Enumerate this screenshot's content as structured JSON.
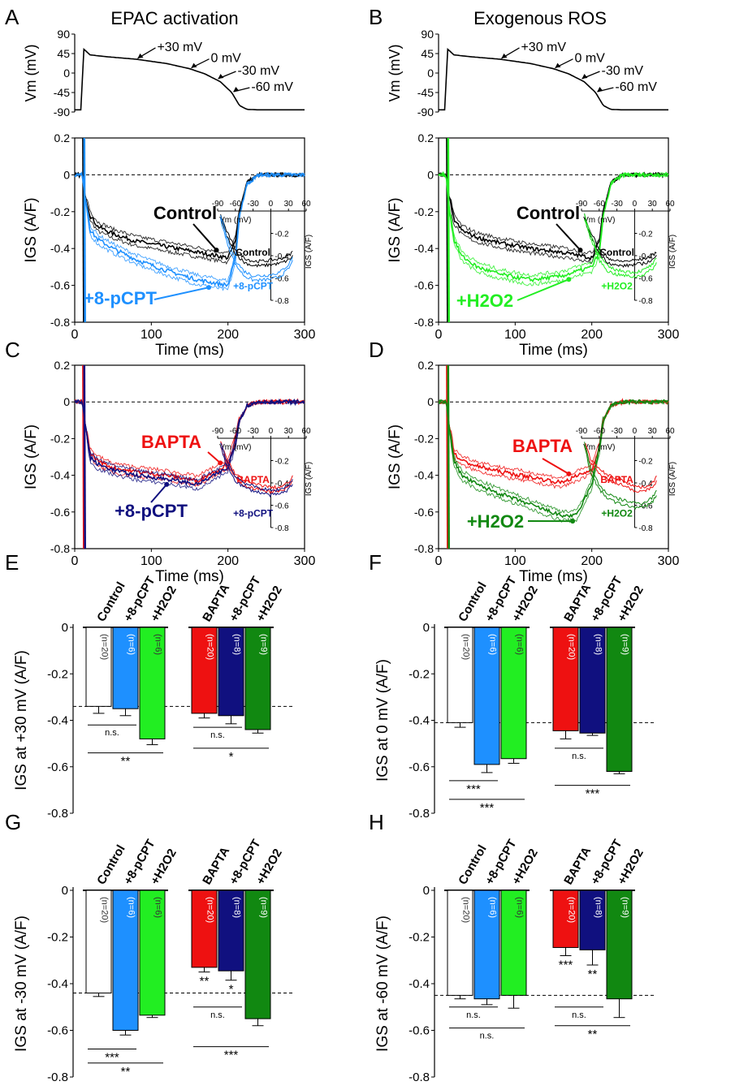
{
  "figure_titles": {
    "left": "EPAC activation",
    "right": "Exogenous ROS"
  },
  "panel_letters": [
    "A",
    "B",
    "C",
    "D",
    "E",
    "F",
    "G",
    "H"
  ],
  "colors": {
    "control": "#000000",
    "pcpt": "#1e90ff",
    "h2o2": "#22ee22",
    "bapta": "#ee1111",
    "bapta_pcpt": "#10107f",
    "bapta_h2o2": "#118811"
  },
  "chart_data": [
    {
      "panel": "A-top",
      "type": "line",
      "ylabel": "Vm (mV)",
      "yticks": [
        90,
        45,
        0,
        -45,
        -90
      ],
      "ylim": [
        -90,
        90
      ],
      "xlim": [
        0,
        300
      ],
      "series": [
        {
          "color": "#000000",
          "x": [
            0,
            8,
            12,
            20,
            40,
            80,
            120,
            150,
            170,
            190,
            205,
            215,
            225,
            240,
            300
          ],
          "y": [
            -85,
            -85,
            55,
            42,
            38,
            32,
            22,
            10,
            -2,
            -20,
            -45,
            -75,
            -84,
            -85,
            -85
          ]
        }
      ],
      "annotations": [
        "+30 mV",
        "0 mV",
        "-30 mV",
        "-60 mV"
      ]
    },
    {
      "panel": "B-top",
      "type": "line",
      "ylabel": "Vm (mV)",
      "yticks": [
        90,
        45,
        0,
        -45,
        -90
      ],
      "ylim": [
        -90,
        90
      ],
      "xlim": [
        0,
        300
      ],
      "series": [
        {
          "color": "#000000",
          "x": [
            0,
            8,
            12,
            20,
            40,
            80,
            120,
            150,
            170,
            190,
            205,
            215,
            225,
            240,
            300
          ],
          "y": [
            -85,
            -85,
            55,
            42,
            38,
            32,
            22,
            10,
            -2,
            -20,
            -45,
            -75,
            -84,
            -85,
            -85
          ]
        }
      ],
      "annotations": [
        "+30 mV",
        "0 mV",
        "-30 mV",
        "-60 mV"
      ]
    },
    {
      "panel": "A",
      "type": "line",
      "xlabel": "Time (ms)",
      "ylabel": "IGS (A/F)",
      "xlim": [
        0,
        300
      ],
      "ylim": [
        -0.8,
        0.2
      ],
      "xticks": [
        0,
        100,
        200,
        300
      ],
      "yticks": [
        0.2,
        0.0,
        -0.2,
        -0.4,
        -0.6,
        -0.8
      ],
      "series": [
        {
          "name": "Control",
          "color": "#000000",
          "x": [
            0,
            10,
            13,
            20,
            30,
            50,
            80,
            120,
            160,
            200,
            210,
            215,
            225,
            240,
            300
          ],
          "y": [
            0,
            0,
            -0.1,
            -0.22,
            -0.28,
            -0.32,
            -0.36,
            -0.39,
            -0.42,
            -0.45,
            -0.36,
            -0.2,
            -0.04,
            0,
            0
          ]
        },
        {
          "name": "+8-pCPT",
          "color": "#1e90ff",
          "x": [
            0,
            10,
            13,
            20,
            30,
            50,
            80,
            120,
            160,
            200,
            210,
            215,
            225,
            240,
            300
          ],
          "y": [
            0,
            0,
            -0.1,
            -0.3,
            -0.35,
            -0.4,
            -0.46,
            -0.52,
            -0.57,
            -0.6,
            -0.45,
            -0.22,
            -0.05,
            0,
            0
          ]
        }
      ],
      "inset": {
        "xlabel": "Vm (mV)",
        "ylabel": "IGS (A/F)",
        "xticks": [
          -90,
          -60,
          -30,
          0,
          30,
          60
        ],
        "yticks": [
          -0.2,
          -0.4,
          -0.6,
          -0.8
        ],
        "series": [
          {
            "name": "Control",
            "x": [
              -85,
              -75,
              -60,
              -45,
              -30,
              -15,
              0,
              15,
              30,
              38
            ],
            "y": [
              -0.05,
              -0.2,
              -0.36,
              -0.44,
              -0.47,
              -0.47,
              -0.46,
              -0.45,
              -0.42,
              -0.38
            ]
          },
          {
            "name": "+8-pCPT",
            "x": [
              -85,
              -75,
              -60,
              -45,
              -30,
              -15,
              0,
              15,
              30,
              38
            ],
            "y": [
              -0.05,
              -0.25,
              -0.46,
              -0.56,
              -0.6,
              -0.6,
              -0.59,
              -0.57,
              -0.5,
              -0.42
            ]
          }
        ]
      }
    },
    {
      "panel": "B",
      "type": "line",
      "xlabel": "Time (ms)",
      "ylabel": "IGS (A/F)",
      "xlim": [
        0,
        300
      ],
      "ylim": [
        -0.8,
        0.2
      ],
      "xticks": [
        0,
        100,
        200,
        300
      ],
      "yticks": [
        0.2,
        0.0,
        -0.2,
        -0.4,
        -0.6,
        -0.8
      ],
      "series": [
        {
          "name": "Control",
          "color": "#000000",
          "x": [
            0,
            10,
            13,
            20,
            30,
            50,
            80,
            120,
            160,
            200,
            210,
            215,
            225,
            240,
            300
          ],
          "y": [
            0,
            0,
            -0.1,
            -0.24,
            -0.3,
            -0.34,
            -0.37,
            -0.4,
            -0.42,
            -0.45,
            -0.36,
            -0.2,
            -0.04,
            0,
            0
          ]
        },
        {
          "name": "+H2O2",
          "color": "#22ee22",
          "x": [
            0,
            10,
            13,
            20,
            30,
            50,
            80,
            120,
            160,
            200,
            210,
            215,
            225,
            240,
            300
          ],
          "y": [
            0,
            0,
            -0.15,
            -0.35,
            -0.44,
            -0.5,
            -0.54,
            -0.57,
            -0.55,
            -0.5,
            -0.42,
            -0.22,
            -0.05,
            0,
            0
          ]
        }
      ],
      "inset": {
        "xlabel": "Vm (mV)",
        "ylabel": "IGS (A/F)",
        "xticks": [
          -90,
          -60,
          -30,
          0,
          30,
          60
        ],
        "yticks": [
          -0.2,
          -0.4,
          -0.6,
          -0.8
        ],
        "series": [
          {
            "name": "Control",
            "x": [
              -85,
              -75,
              -60,
              -45,
              -30,
              -15,
              0,
              15,
              30,
              38
            ],
            "y": [
              -0.05,
              -0.2,
              -0.36,
              -0.44,
              -0.47,
              -0.47,
              -0.46,
              -0.45,
              -0.42,
              -0.38
            ]
          },
          {
            "name": "+H2O2",
            "x": [
              -85,
              -75,
              -60,
              -45,
              -30,
              -15,
              0,
              15,
              30,
              38
            ],
            "y": [
              -0.05,
              -0.22,
              -0.42,
              -0.52,
              -0.55,
              -0.56,
              -0.57,
              -0.55,
              -0.5,
              -0.44
            ]
          }
        ]
      }
    },
    {
      "panel": "C",
      "type": "line",
      "xlabel": "Time (ms)",
      "ylabel": "IGS (A/F)",
      "xlim": [
        0,
        300
      ],
      "ylim": [
        -0.8,
        0.2
      ],
      "xticks": [
        0,
        100,
        200,
        300
      ],
      "yticks": [
        0.2,
        0.0,
        -0.2,
        -0.4,
        -0.6,
        -0.8
      ],
      "series": [
        {
          "name": "BAPTA",
          "color": "#ee1111",
          "x": [
            0,
            10,
            13,
            20,
            30,
            50,
            80,
            120,
            160,
            200,
            210,
            215,
            225,
            240,
            300
          ],
          "y": [
            0,
            0,
            -0.1,
            -0.28,
            -0.32,
            -0.36,
            -0.38,
            -0.4,
            -0.43,
            -0.34,
            -0.2,
            -0.1,
            -0.02,
            0,
            0
          ]
        },
        {
          "name": "+8-pCPT",
          "color": "#10107f",
          "x": [
            0,
            10,
            13,
            20,
            30,
            50,
            80,
            120,
            160,
            200,
            210,
            215,
            225,
            240,
            300
          ],
          "y": [
            0,
            0,
            -0.1,
            -0.3,
            -0.34,
            -0.37,
            -0.4,
            -0.42,
            -0.45,
            -0.36,
            -0.22,
            -0.1,
            -0.02,
            0,
            0
          ]
        }
      ],
      "inset": {
        "xlabel": "Vm (mV)",
        "ylabel": "IGS (A/F)",
        "xticks": [
          -90,
          -60,
          -30,
          0,
          30,
          60
        ],
        "yticks": [
          -0.2,
          -0.4,
          -0.6,
          -0.8
        ],
        "series": [
          {
            "name": "BAPTA",
            "x": [
              -85,
              -75,
              -60,
              -45,
              -30,
              -15,
              0,
              15,
              30,
              38
            ],
            "y": [
              -0.05,
              -0.2,
              -0.34,
              -0.4,
              -0.43,
              -0.44,
              -0.46,
              -0.46,
              -0.42,
              -0.36
            ]
          },
          {
            "name": "+8-pCPT",
            "x": [
              -85,
              -75,
              -60,
              -45,
              -30,
              -15,
              0,
              15,
              30,
              38
            ],
            "y": [
              -0.05,
              -0.22,
              -0.36,
              -0.42,
              -0.45,
              -0.47,
              -0.49,
              -0.48,
              -0.44,
              -0.38
            ]
          }
        ]
      }
    },
    {
      "panel": "D",
      "type": "line",
      "xlabel": "Time (ms)",
      "ylabel": "IGS (A/F)",
      "xlim": [
        0,
        300
      ],
      "ylim": [
        -0.8,
        0.2
      ],
      "xticks": [
        0,
        100,
        200,
        300
      ],
      "yticks": [
        0.2,
        0.0,
        -0.2,
        -0.4,
        -0.6,
        -0.8
      ],
      "series": [
        {
          "name": "BAPTA",
          "color": "#ee1111",
          "x": [
            0,
            10,
            13,
            20,
            30,
            50,
            80,
            120,
            160,
            200,
            210,
            215,
            225,
            240,
            300
          ],
          "y": [
            0,
            0,
            -0.1,
            -0.28,
            -0.32,
            -0.35,
            -0.38,
            -0.41,
            -0.44,
            -0.37,
            -0.24,
            -0.1,
            -0.02,
            0,
            0
          ]
        },
        {
          "name": "+H2O2",
          "color": "#118811",
          "x": [
            0,
            10,
            13,
            20,
            30,
            50,
            80,
            120,
            160,
            180,
            200,
            210,
            215,
            225,
            240,
            300
          ],
          "y": [
            0,
            0,
            -0.1,
            -0.32,
            -0.4,
            -0.45,
            -0.5,
            -0.56,
            -0.62,
            -0.62,
            -0.45,
            -0.25,
            -0.1,
            -0.02,
            0,
            0
          ]
        }
      ],
      "inset": {
        "xlabel": "Vm (mV)",
        "ylabel": "IGS (A/F)",
        "xticks": [
          -90,
          -60,
          -30,
          0,
          30,
          60
        ],
        "yticks": [
          -0.2,
          -0.4,
          -0.6,
          -0.8
        ],
        "series": [
          {
            "name": "BAPTA",
            "x": [
              -85,
              -75,
              -60,
              -45,
              -30,
              -15,
              0,
              15,
              30,
              38
            ],
            "y": [
              -0.05,
              -0.2,
              -0.3,
              -0.35,
              -0.38,
              -0.41,
              -0.45,
              -0.46,
              -0.42,
              -0.36
            ]
          },
          {
            "name": "+H2O2",
            "x": [
              -85,
              -75,
              -60,
              -45,
              -30,
              -15,
              0,
              15,
              30,
              38
            ],
            "y": [
              -0.05,
              -0.28,
              -0.44,
              -0.52,
              -0.56,
              -0.58,
              -0.6,
              -0.6,
              -0.55,
              -0.48
            ]
          }
        ]
      }
    },
    {
      "panel": "E",
      "type": "bar",
      "ylabel": "IGS at +30 mV (A/F)",
      "ylim": [
        -0.8,
        0
      ],
      "yticks": [
        0.0,
        -0.2,
        -0.4,
        -0.6,
        -0.8
      ],
      "reference_line": -0.34,
      "categories": [
        "Control",
        "+8-pCPT",
        "+H2O2",
        "BAPTA",
        "+8-pCPT",
        "+H2O2"
      ],
      "n": [
        "(n=20)",
        "(n=6)",
        "(n=6)",
        "(n=20)",
        "(n=8)",
        "(n=9)"
      ],
      "values": [
        -0.34,
        -0.35,
        -0.48,
        -0.37,
        -0.38,
        -0.44
      ],
      "errors": [
        0.03,
        0.03,
        0.025,
        0.02,
        0.035,
        0.015
      ],
      "significance": [
        {
          "from": 0,
          "to": 1,
          "label": "n.s.",
          "y": -0.42
        },
        {
          "from": 0,
          "to": 2,
          "label": "**",
          "y": -0.54
        },
        {
          "from": 3,
          "to": 4,
          "label": "n.s.",
          "y": -0.43
        },
        {
          "from": 3,
          "to": 5,
          "label": "*",
          "y": -0.52
        }
      ],
      "inline_marks": []
    },
    {
      "panel": "F",
      "type": "bar",
      "ylabel": "IGS at 0 mV (A/F)",
      "ylim": [
        -0.8,
        0
      ],
      "yticks": [
        0.0,
        -0.2,
        -0.4,
        -0.6,
        -0.8
      ],
      "reference_line": -0.41,
      "categories": [
        "Control",
        "+8-pCPT",
        "+H2O2",
        "BAPTA",
        "+8-pCPT",
        "+H2O2"
      ],
      "n": [
        "(n=20)",
        "(n=6)",
        "(n=6)",
        "(n=20)",
        "(n=8)",
        "(n=9)"
      ],
      "values": [
        -0.41,
        -0.59,
        -0.565,
        -0.445,
        -0.455,
        -0.62
      ],
      "errors": [
        0.02,
        0.035,
        0.02,
        0.035,
        0.01,
        0.01
      ],
      "significance": [
        {
          "from": 0,
          "to": 1,
          "label": "***",
          "y": -0.66
        },
        {
          "from": 0,
          "to": 2,
          "label": "***",
          "y": -0.74
        },
        {
          "from": 3,
          "to": 4,
          "label": "n.s.",
          "y": -0.52
        },
        {
          "from": 3,
          "to": 5,
          "label": "***",
          "y": -0.68
        }
      ],
      "inline_marks": []
    },
    {
      "panel": "G",
      "type": "bar",
      "ylabel": "IGS at -30 mV (A/F)",
      "ylim": [
        -0.8,
        0
      ],
      "yticks": [
        0.0,
        -0.2,
        -0.4,
        -0.6,
        -0.8
      ],
      "reference_line": -0.44,
      "categories": [
        "Control",
        "+8-pCPT",
        "+H2O2",
        "BAPTA",
        "+8-pCPT",
        "+H2O2"
      ],
      "n": [
        "(n=20)",
        "(n=6)",
        "(n=6)",
        "(n=20)",
        "(n=8)",
        "(n=9)"
      ],
      "values": [
        -0.44,
        -0.6,
        -0.535,
        -0.33,
        -0.345,
        -0.55
      ],
      "errors": [
        0.015,
        0.02,
        0.01,
        0.02,
        0.04,
        0.03
      ],
      "significance": [
        {
          "from": 0,
          "to": 1,
          "label": "***",
          "y": -0.68
        },
        {
          "from": 0,
          "to": 2,
          "label": "**",
          "y": -0.74
        },
        {
          "from": 3,
          "to": 4,
          "label": "n.s.",
          "y": -0.5
        },
        {
          "from": 3,
          "to": 5,
          "label": "***",
          "y": -0.67
        }
      ],
      "inline_marks": [
        {
          "bar": 3,
          "label": "**"
        },
        {
          "bar": 4,
          "label": "*"
        }
      ]
    },
    {
      "panel": "H",
      "type": "bar",
      "ylabel": "IGS at -60 mV (A/F)",
      "ylim": [
        -0.8,
        0
      ],
      "yticks": [
        0.0,
        -0.2,
        -0.4,
        -0.6,
        -0.8
      ],
      "reference_line": -0.45,
      "categories": [
        "Control",
        "+8-pCPT",
        "+H2O2",
        "BAPTA",
        "+8-pCPT",
        "+H2O2"
      ],
      "n": [
        "(n=20)",
        "(n=6)",
        "(n=6)",
        "(n=20)",
        "(n=8)",
        "(n=9)"
      ],
      "values": [
        -0.45,
        -0.465,
        -0.45,
        -0.245,
        -0.255,
        -0.465
      ],
      "errors": [
        0.015,
        0.025,
        0.055,
        0.035,
        0.065,
        0.08
      ],
      "significance": [
        {
          "from": 0,
          "to": 1,
          "label": "n.s.",
          "y": -0.5
        },
        {
          "from": 0,
          "to": 2,
          "label": "n.s.",
          "y": -0.59
        },
        {
          "from": 3,
          "to": 4,
          "label": "n.s.",
          "y": -0.5
        },
        {
          "from": 3,
          "to": 5,
          "label": "**",
          "y": -0.58
        }
      ],
      "inline_marks": [
        {
          "bar": 3,
          "label": "***"
        },
        {
          "bar": 4,
          "label": "**"
        }
      ]
    }
  ]
}
